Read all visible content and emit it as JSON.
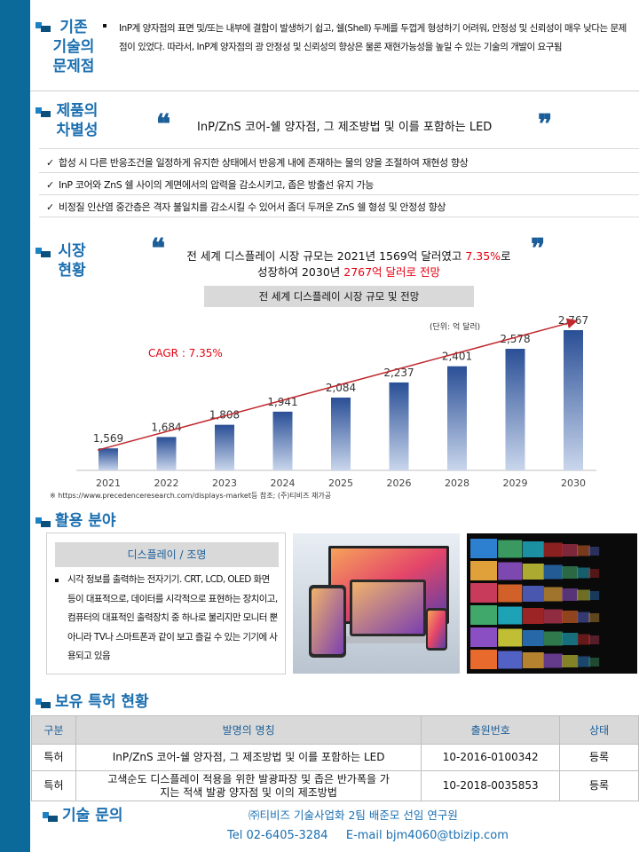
{
  "sections": {
    "problem": "기존\n기술의\n문제점",
    "differentiation": "제품의\n차별성",
    "market": "시장\n현황",
    "application": "활용 분야",
    "patents": "보유 특허 현황",
    "inquiry": "기술 문의"
  },
  "problem": {
    "text": "InP계 양자점의 표면 및/또는 내부에 결함이 발생하기 쉽고, 쉘(Shell) 두께를 두껍게 형성하기 어려워, 안정성 및 신뢰성이 매우 낮다는 문제점이 있었다. 따라서, InP계 양자점의 광 안정성 및 신뢰성의 향상은 물론 재현가능성을 높일 수 있는 기술의 개발이 요구됨"
  },
  "differentiation": {
    "quote_open": "❝",
    "quote_close": "❞",
    "headline": "InP/ZnS 코어-쉘 양자점, 그 제조방법 및 이를 포함하는 LED",
    "checks": [
      "합성 시 다른 반응조건을 일정하게 유지한 상태에서 반응계 내에 존재하는 물의 양을 조절하여 재현성 향상",
      "InP 코어와 ZnS 쉘 사이의 계면에서의 압력을 감소시키고, 좁은 방출선 유지 가능",
      "비정질 인산염 중간층은 격자 불일치를 감소시킬 수 있어서 좀더 두꺼운 ZnS 쉘 형성 및 안정성 향상"
    ]
  },
  "market": {
    "line1_a": "전 세계 디스플레이 시장 규모는 2021년 1569억 달러였고 ",
    "line1_red": "7.35%",
    "line1_b": "로",
    "line2_a": "성장하여 2030년 ",
    "line2_red": "2767억 달러로 전망",
    "chart_title": "전 세계 디스플레이 시장 규모 및 전망",
    "source": "※ https://www.precedenceresearch.com/displays-market등 참조; (주)티비즈 재가공"
  },
  "chart_data": {
    "type": "bar",
    "title": "전 세계 디스플레이 시장 규모 및 전망",
    "unit": "(단위: 억 달러)",
    "cagr": "CAGR : 7.35%",
    "categories": [
      "2021",
      "2022",
      "2023",
      "2024",
      "2025",
      "2026",
      "2028",
      "2029",
      "2030"
    ],
    "values": [
      1569,
      1684,
      1808,
      1941,
      2084,
      2237,
      2401,
      2578,
      2767
    ],
    "labels": [
      "1,569",
      "1,684",
      "1,808",
      "1,941",
      "2,084",
      "2,237",
      "2,401",
      "2,578",
      "2,767"
    ],
    "colors": {
      "bar_top": "#7fa2d6",
      "bar_bottom": "#2a4f96",
      "trend": "#c0282d"
    }
  },
  "application": {
    "heading": "디스플레이 / 조명",
    "text": "시각 정보를 출력하는 전자기기. CRT, LCD, OLED 화면 등이 대표적으로, 데이터를 시각적으로 표현하는 장치이고, 컴퓨터의 대표적인 출력장치 중 하나로 불리지만 모니터 뿐 아니라 TV나 스마트폰과 같이 보고 즐길 수 있는 기기에 사용되고 있음"
  },
  "patents": {
    "headers": [
      "구분",
      "발명의 명칭",
      "출원번호",
      "상태"
    ],
    "rows": [
      [
        "특허",
        "InP/ZnS 코어-쉘 양자점, 그 제조방법 및 이를 포함하는 LED",
        "10-2016-0100342",
        "등록"
      ],
      [
        "특허",
        "고색순도 디스플레이 적용을 위한 발광파장 및 좁은 반가폭을 가지는 적색 발광 양자점 및 이의 제조방법",
        "10-2018-0035853",
        "등록"
      ]
    ]
  },
  "inquiry": {
    "org": "㈜티비즈 기술사업화 2팀 배준모 선임 연구원",
    "tel_label": "Tel",
    "tel": "02-6405-3284",
    "email_label": "E-mail",
    "email": "bjm4060@tbizip.com"
  },
  "colors": {
    "sidebar": "#0b6a9a",
    "accent": "#1b6fb0",
    "red": "#e60012"
  }
}
